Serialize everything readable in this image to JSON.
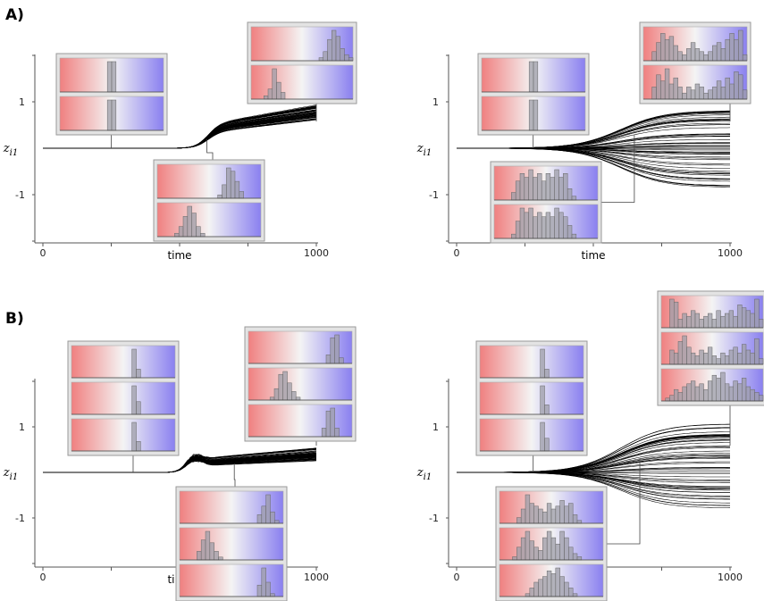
{
  "labels": {
    "panel_a": "A)",
    "panel_b": "B)"
  },
  "colors": {
    "left": "#f08080",
    "mid": "#f2f2f2",
    "right": "#8a80f0",
    "hist": "#a8a8b0",
    "line": "#000000"
  },
  "chart_data": [
    {
      "type": "line",
      "id": "A-left",
      "panel": "A",
      "xlabel": "time",
      "ylabel": "z_i1",
      "xlim": [
        0,
        1000
      ],
      "ylim": [
        -2,
        2
      ],
      "xticks": [
        "0",
        "1000"
      ],
      "yticks": [
        "1",
        "-1"
      ],
      "n_lines": 60,
      "t_rise": 600,
      "final_range": [
        0.6,
        0.95
      ],
      "bump": 0.0,
      "insets": [
        {
          "t": 250,
          "hists": [
            [
              0,
              0,
              0,
              0,
              0,
              0,
              0,
              0,
              0,
              0,
              0,
              10,
              10,
              0,
              0,
              0,
              0,
              0,
              0,
              0,
              0,
              0,
              0,
              0
            ],
            [
              0,
              0,
              0,
              0,
              0,
              0,
              0,
              0,
              0,
              0,
              0,
              10,
              10,
              0,
              0,
              0,
              0,
              0,
              0,
              0,
              0,
              0,
              0,
              0
            ]
          ]
        },
        {
          "t": 600,
          "hists": [
            [
              0,
              0,
              0,
              0,
              0,
              0,
              0,
              0,
              0,
              0,
              0,
              0,
              0,
              0,
              1,
              4,
              9,
              8,
              5,
              2,
              0,
              0,
              0,
              0
            ],
            [
              0,
              0,
              0,
              0,
              1,
              3,
              6,
              9,
              7,
              3,
              1,
              0,
              0,
              0,
              0,
              0,
              0,
              0,
              0,
              0,
              0,
              0,
              0,
              0
            ]
          ]
        },
        {
          "t": 1000,
          "hists": [
            [
              0,
              0,
              0,
              0,
              0,
              0,
              0,
              0,
              0,
              0,
              0,
              0,
              0,
              0,
              0,
              0,
              1,
              3,
              7,
              10,
              8,
              4,
              2,
              1
            ],
            [
              0,
              0,
              0,
              1,
              3,
              9,
              5,
              2,
              0,
              0,
              0,
              0,
              0,
              0,
              0,
              0,
              0,
              0,
              0,
              0,
              0,
              0,
              0,
              0
            ]
          ]
        }
      ]
    },
    {
      "type": "line",
      "id": "A-right",
      "panel": "A",
      "xlabel": "time",
      "ylabel": "z_i1",
      "xlim": [
        0,
        1000
      ],
      "ylim": [
        -2,
        2
      ],
      "xticks": [
        "0",
        "1000"
      ],
      "yticks": [
        "1",
        "-1"
      ],
      "n_lines": 60,
      "t_rise": 600,
      "final_range": [
        -0.85,
        0.85
      ],
      "bump": 0.0,
      "insets": [
        {
          "t": 280,
          "hists": [
            [
              0,
              0,
              0,
              0,
              0,
              0,
              0,
              0,
              0,
              0,
              0,
              10,
              10,
              0,
              0,
              0,
              0,
              0,
              0,
              0,
              0,
              0,
              0,
              0
            ],
            [
              0,
              0,
              0,
              0,
              0,
              0,
              0,
              0,
              0,
              0,
              0,
              10,
              10,
              0,
              0,
              0,
              0,
              0,
              0,
              0,
              0,
              0,
              0,
              0
            ]
          ]
        },
        {
          "t": 650,
          "hists": [
            [
              0,
              0,
              0,
              0,
              2,
              5,
              7,
              6,
              8,
              6,
              7,
              5,
              7,
              6,
              8,
              6,
              7,
              3,
              1,
              0,
              0,
              0,
              0,
              0
            ],
            [
              0,
              0,
              0,
              0,
              1,
              4,
              7,
              6,
              7,
              5,
              6,
              5,
              6,
              5,
              7,
              6,
              5,
              3,
              1,
              0,
              0,
              0,
              0,
              0
            ]
          ]
        },
        {
          "t": 1000,
          "hists": [
            [
              0,
              0,
              3,
              6,
              9,
              7,
              8,
              5,
              3,
              2,
              4,
              6,
              4,
              3,
              2,
              3,
              5,
              6,
              4,
              7,
              9,
              7,
              10,
              2
            ],
            [
              0,
              0,
              4,
              8,
              6,
              10,
              5,
              7,
              4,
              2,
              4,
              3,
              5,
              4,
              2,
              3,
              4,
              6,
              4,
              7,
              5,
              9,
              8,
              3
            ]
          ]
        }
      ]
    },
    {
      "type": "line",
      "id": "B-left",
      "panel": "B",
      "xlabel": "time",
      "ylabel": "z_i1",
      "xlim": [
        0,
        1000
      ],
      "ylim": [
        -2,
        2
      ],
      "xticks": [
        "0",
        "1000"
      ],
      "yticks": [
        "1",
        "-1"
      ],
      "n_lines": 60,
      "t_rise": 550,
      "final_range": [
        0.25,
        0.55
      ],
      "bump": 0.25,
      "insets": [
        {
          "t": 330,
          "hists": [
            [
              0,
              0,
              0,
              0,
              0,
              0,
              0,
              0,
              0,
              0,
              0,
              0,
              0,
              0,
              10,
              3,
              0,
              0,
              0,
              0,
              0,
              0,
              0,
              0
            ],
            [
              0,
              0,
              0,
              0,
              0,
              0,
              0,
              0,
              0,
              0,
              0,
              0,
              0,
              0,
              9,
              4,
              0,
              0,
              0,
              0,
              0,
              0,
              0,
              0
            ],
            [
              0,
              0,
              0,
              0,
              0,
              0,
              0,
              0,
              0,
              0,
              0,
              0,
              0,
              0,
              9,
              3,
              0,
              0,
              0,
              0,
              0,
              0,
              0,
              0
            ]
          ]
        },
        {
          "t": 700,
          "hists": [
            [
              0,
              0,
              0,
              0,
              0,
              0,
              0,
              0,
              0,
              0,
              0,
              0,
              0,
              0,
              0,
              0,
              0,
              0,
              3,
              6,
              10,
              4,
              1,
              0
            ],
            [
              0,
              0,
              0,
              0,
              3,
              7,
              10,
              6,
              3,
              1,
              0,
              0,
              0,
              0,
              0,
              0,
              0,
              0,
              0,
              0,
              0,
              0,
              0,
              0
            ],
            [
              0,
              0,
              0,
              0,
              0,
              0,
              0,
              0,
              0,
              0,
              0,
              0,
              0,
              0,
              0,
              0,
              0,
              0,
              4,
              10,
              5,
              1,
              0,
              0
            ]
          ]
        },
        {
          "t": 1000,
          "hists": [
            [
              0,
              0,
              0,
              0,
              0,
              0,
              0,
              0,
              0,
              0,
              0,
              0,
              0,
              0,
              0,
              0,
              0,
              0,
              3,
              9,
              10,
              2,
              0,
              0
            ],
            [
              0,
              0,
              0,
              0,
              0,
              1,
              4,
              9,
              10,
              6,
              3,
              1,
              0,
              0,
              0,
              0,
              0,
              0,
              0,
              0,
              0,
              0,
              0,
              0
            ],
            [
              0,
              0,
              0,
              0,
              0,
              0,
              0,
              0,
              0,
              0,
              0,
              0,
              0,
              0,
              0,
              0,
              0,
              3,
              9,
              10,
              3,
              0,
              0,
              0
            ]
          ]
        }
      ]
    },
    {
      "type": "line",
      "id": "B-right",
      "panel": "B",
      "xlabel": "time",
      "ylabel": "z_i1",
      "xlim": [
        0,
        1000
      ],
      "ylim": [
        -2,
        2
      ],
      "xticks": [
        "0",
        "1000"
      ],
      "yticks": [
        "1",
        "-1"
      ],
      "n_lines": 60,
      "t_rise": 600,
      "final_range": [
        -0.8,
        1.1
      ],
      "bump": 0.0,
      "insets": [
        {
          "t": 280,
          "hists": [
            [
              0,
              0,
              0,
              0,
              0,
              0,
              0,
              0,
              0,
              0,
              0,
              0,
              0,
              0,
              10,
              3,
              0,
              0,
              0,
              0,
              0,
              0,
              0,
              0
            ],
            [
              0,
              0,
              0,
              0,
              0,
              0,
              0,
              0,
              0,
              0,
              0,
              0,
              0,
              0,
              9,
              3,
              0,
              0,
              0,
              0,
              0,
              0,
              0,
              0
            ],
            [
              0,
              0,
              0,
              0,
              0,
              0,
              0,
              0,
              0,
              0,
              0,
              0,
              0,
              0,
              9,
              4,
              0,
              0,
              0,
              0,
              0,
              0,
              0,
              0
            ]
          ]
        },
        {
          "t": 670,
          "hists": [
            [
              0,
              0,
              0,
              0,
              2,
              5,
              10,
              7,
              6,
              5,
              4,
              7,
              5,
              6,
              8,
              6,
              7,
              3,
              1,
              0,
              0,
              0,
              0,
              0
            ],
            [
              0,
              0,
              0,
              1,
              4,
              7,
              9,
              6,
              4,
              3,
              7,
              9,
              7,
              5,
              9,
              7,
              4,
              2,
              1,
              0,
              0,
              0,
              0,
              0
            ],
            [
              0,
              0,
              0,
              0,
              0,
              0,
              1,
              3,
              5,
              6,
              7,
              9,
              8,
              10,
              7,
              5,
              3,
              1,
              0,
              0,
              0,
              0,
              0,
              0
            ]
          ]
        },
        {
          "t": 1000,
          "hists": [
            [
              0,
              0,
              10,
              9,
              3,
              5,
              4,
              6,
              5,
              3,
              4,
              5,
              3,
              6,
              4,
              5,
              6,
              4,
              8,
              7,
              6,
              5,
              10,
              3
            ],
            [
              0,
              0,
              5,
              4,
              8,
              10,
              6,
              4,
              3,
              5,
              4,
              6,
              3,
              2,
              4,
              3,
              5,
              6,
              4,
              7,
              5,
              4,
              9,
              2
            ],
            [
              0,
              1,
              2,
              4,
              3,
              5,
              6,
              7,
              5,
              6,
              4,
              7,
              9,
              8,
              10,
              6,
              5,
              7,
              6,
              8,
              5,
              4,
              3,
              2
            ]
          ]
        }
      ]
    }
  ]
}
